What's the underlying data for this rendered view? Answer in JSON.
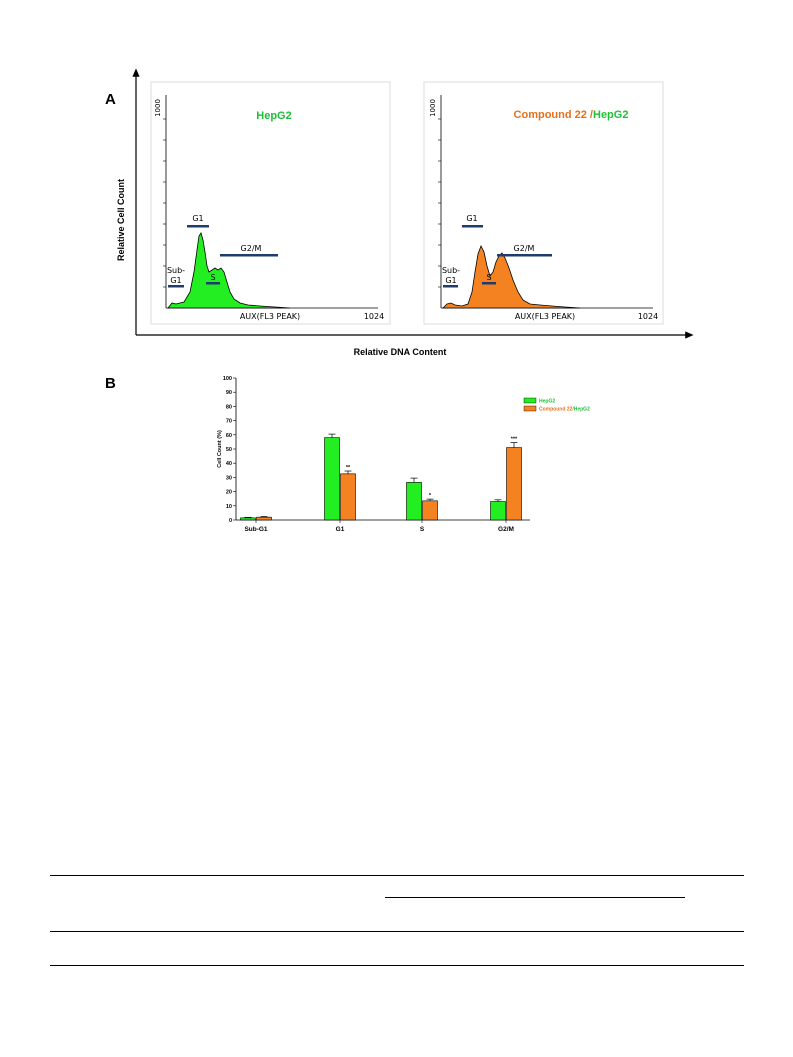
{
  "figure": {
    "panel_a_letter": "A",
    "panel_b_letter": "B",
    "y_axis_title": "Relative Cell Count",
    "x_axis_title": "Relative DNA Content",
    "colors": {
      "hepg2": "#22ee22",
      "compound": "#f58220",
      "phase_bar": "#1f3c6e",
      "title_green": "#1fbf3a",
      "title_orange": "#e8701a"
    }
  },
  "histograms": [
    {
      "title_parts": [
        {
          "text": "HepG2",
          "color": "green"
        }
      ],
      "y_max_label": "1000",
      "x_axis_label": "AUX(FL3 PEAK)",
      "x_max_label": "1024",
      "phases": {
        "subg1_line1": "Sub-",
        "subg1_line2": "G1",
        "g1": "G1",
        "s": "S",
        "g2m": "G2/M"
      }
    },
    {
      "title_parts": [
        {
          "text": "Compound 22",
          "color": "orange"
        },
        {
          "text": " /",
          "color": "orange"
        },
        {
          "text": "HepG2",
          "color": "green"
        }
      ],
      "y_max_label": "1000",
      "x_axis_label": "AUX(FL3 PEAK)",
      "x_max_label": "1024",
      "phases": {
        "subg1_line1": "Sub-",
        "subg1_line2": "G1",
        "g1": "G1",
        "s": "S",
        "g2m": "G2/M"
      }
    }
  ],
  "chart_data": {
    "type": "bar",
    "ylabel": "Cell Count (%)",
    "xlabel": "",
    "ylim": [
      0,
      100
    ],
    "yticks": [
      0,
      10,
      20,
      30,
      40,
      50,
      60,
      70,
      80,
      90,
      100
    ],
    "categories": [
      "Sub-G1",
      "G1",
      "S",
      "G2/M"
    ],
    "series": [
      {
        "name": "HepG2",
        "values": [
          1.5,
          58,
          26.5,
          13
        ],
        "errors": [
          0.4,
          2.5,
          3,
          1.2
        ]
      },
      {
        "name": "Compound 22/HepG2",
        "values": [
          2,
          32.5,
          13.5,
          51
        ],
        "errors": [
          0.5,
          2,
          1.2,
          3.5
        ]
      }
    ],
    "legend_placement": "top-right",
    "legend_labels": [
      [
        {
          "text": "HepG2",
          "color": "green"
        }
      ],
      [
        {
          "text": "Compound 22",
          "color": "orange"
        },
        {
          "text": "/",
          "color": "orange"
        },
        {
          "text": "HepG2",
          "color": "green"
        }
      ]
    ],
    "significance": [
      "",
      "**",
      "*",
      "***"
    ],
    "grid": false
  }
}
